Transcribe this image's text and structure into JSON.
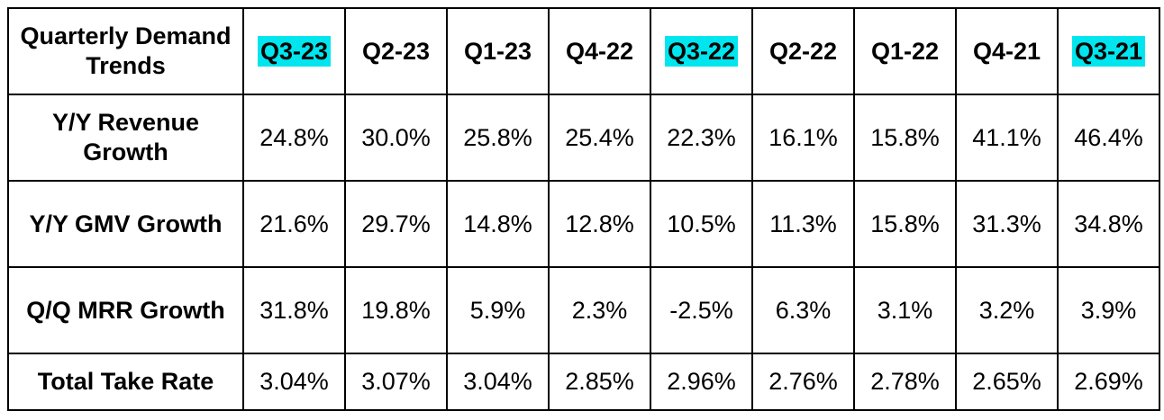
{
  "table": {
    "corner_header": "Quarterly Demand Trends",
    "highlight_color": "#00e5ee",
    "columns": [
      {
        "label": "Q3-23",
        "highlight": true
      },
      {
        "label": "Q2-23",
        "highlight": false
      },
      {
        "label": "Q1-23",
        "highlight": false
      },
      {
        "label": "Q4-22",
        "highlight": false
      },
      {
        "label": "Q3-22",
        "highlight": true
      },
      {
        "label": "Q2-22",
        "highlight": false
      },
      {
        "label": "Q1-22",
        "highlight": false
      },
      {
        "label": "Q4-21",
        "highlight": false
      },
      {
        "label": "Q3-21",
        "highlight": true
      }
    ],
    "rows": [
      {
        "label": "Y/Y Revenue Growth",
        "values": [
          "24.8%",
          "30.0%",
          "25.8%",
          "25.4%",
          "22.3%",
          "16.1%",
          "15.8%",
          "41.1%",
          "46.4%"
        ]
      },
      {
        "label": "Y/Y GMV Growth",
        "values": [
          "21.6%",
          "29.7%",
          "14.8%",
          "12.8%",
          "10.5%",
          "11.3%",
          "15.8%",
          "31.3%",
          "34.8%"
        ]
      },
      {
        "label": "Q/Q MRR Growth",
        "values": [
          "31.8%",
          "19.8%",
          "5.9%",
          "2.3%",
          "-2.5%",
          "6.3%",
          "3.1%",
          "3.2%",
          "3.9%"
        ]
      },
      {
        "label": "Total Take Rate",
        "values": [
          "3.04%",
          "3.07%",
          "3.04%",
          "2.85%",
          "2.96%",
          "2.76%",
          "2.78%",
          "2.65%",
          "2.69%"
        ]
      }
    ]
  }
}
